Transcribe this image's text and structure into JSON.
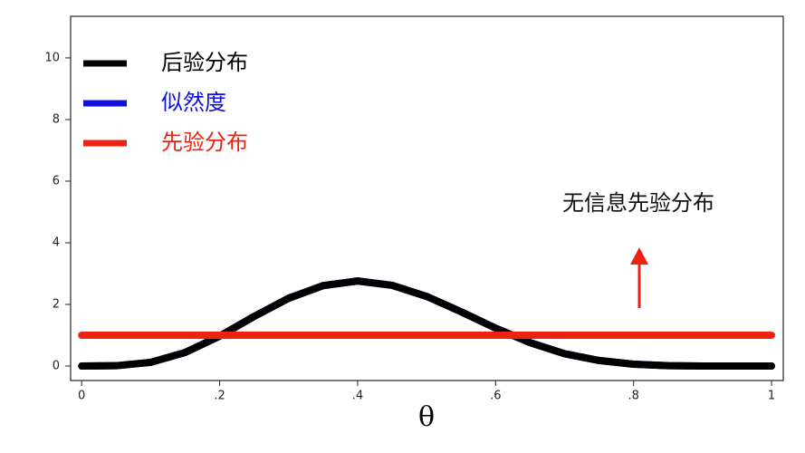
{
  "chart_data": {
    "type": "line",
    "x_label": "θ",
    "annotation": "无信息先验分布",
    "x": [
      0,
      0.05,
      0.1,
      0.15,
      0.2,
      0.25,
      0.3,
      0.35,
      0.4,
      0.45,
      0.5,
      0.55,
      0.6,
      0.65,
      0.7,
      0.75,
      0.8,
      0.85,
      0.9,
      0.95,
      1
    ],
    "series": [
      {
        "name": "似然度",
        "color": "#1010e0",
        "values": [
          0,
          0.01,
          0.12,
          0.44,
          0.97,
          1.61,
          2.2,
          2.61,
          2.76,
          2.62,
          2.26,
          1.76,
          1.23,
          0.76,
          0.4,
          0.18,
          0.06,
          0.01,
          0,
          0,
          0
        ]
      },
      {
        "name": "后验分布",
        "color": "#000000",
        "values": [
          0,
          0.01,
          0.12,
          0.44,
          0.97,
          1.61,
          2.2,
          2.61,
          2.76,
          2.62,
          2.26,
          1.76,
          1.23,
          0.76,
          0.4,
          0.18,
          0.06,
          0.01,
          0,
          0,
          0
        ]
      },
      {
        "name": "先验分布",
        "color": "#ee2211",
        "values": [
          1,
          1,
          1,
          1,
          1,
          1,
          1,
          1,
          1,
          1,
          1,
          1,
          1,
          1,
          1,
          1,
          1,
          1,
          1,
          1,
          1
        ]
      }
    ],
    "legend_order": [
      1,
      0,
      2
    ],
    "xlim": [
      -0.016,
      1.017
    ],
    "ylim": [
      -0.47,
      11.35
    ],
    "xticks": [
      0,
      {
        "value": 0.2,
        "label": ".2"
      },
      {
        "value": 0.4,
        "label": ".4"
      },
      {
        "value": 0.6,
        "label": ".6"
      },
      {
        "value": 0.8,
        "label": ".8"
      },
      1
    ],
    "yticks": [
      0,
      2,
      4,
      6,
      8,
      10
    ],
    "grid": false
  }
}
